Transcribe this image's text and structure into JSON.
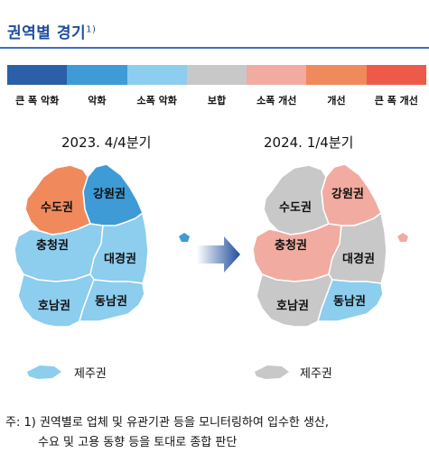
{
  "title": "권역별 경기",
  "title_sup": "1)",
  "legend": [
    {
      "label": "큰 폭 악화",
      "color": "#2b5fa8"
    },
    {
      "label": "악화",
      "color": "#3e9bd6"
    },
    {
      "label": "소폭 악화",
      "color": "#8dcdee"
    },
    {
      "label": "보합",
      "color": "#c8c8c8"
    },
    {
      "label": "소폭 개선",
      "color": "#f2aba0"
    },
    {
      "label": "개선",
      "color": "#f08a5c"
    },
    {
      "label": "큰 폭 개선",
      "color": "#ee5a4a"
    }
  ],
  "maps": [
    {
      "period": "2023. 4/4분기",
      "regions": {
        "sudogwon": {
          "label": "수도권",
          "status": "개선"
        },
        "gangwon": {
          "label": "강원권",
          "status": "악화"
        },
        "chungcheong": {
          "label": "충청권",
          "status": "소폭 악화"
        },
        "daegyeong": {
          "label": "대경권",
          "status": "소폭 악화"
        },
        "honam": {
          "label": "호남권",
          "status": "소폭 악화"
        },
        "dongnam": {
          "label": "동남권",
          "status": "소폭 악화"
        },
        "jeju": {
          "label": "제주권",
          "status": "소폭 악화"
        }
      }
    },
    {
      "period": "2024. 1/4분기",
      "regions": {
        "sudogwon": {
          "label": "수도권",
          "status": "보합"
        },
        "gangwon": {
          "label": "강원권",
          "status": "소폭 개선"
        },
        "chungcheong": {
          "label": "충청권",
          "status": "소폭 개선"
        },
        "daegyeong": {
          "label": "대경권",
          "status": "보합"
        },
        "honam": {
          "label": "호남권",
          "status": "보합"
        },
        "dongnam": {
          "label": "동남권",
          "status": "소폭 악화"
        },
        "jeju": {
          "label": "제주권",
          "status": "보합"
        }
      }
    }
  ],
  "note": {
    "line1": "주: 1) 권역별로 업체 및 유관기관 등을 모니터링하여 입수한 생산,",
    "line2": "수요 및 고용 동향 등을 토대로 종합 판단"
  }
}
